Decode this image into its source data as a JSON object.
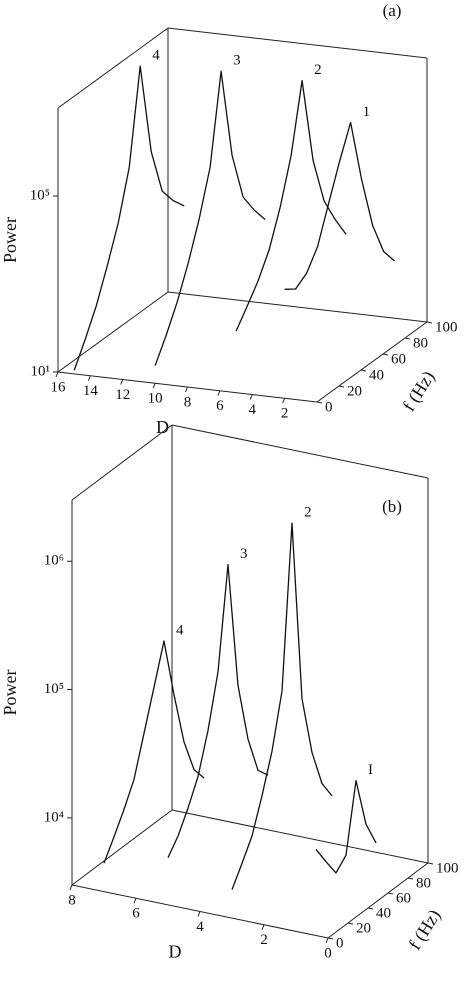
{
  "chart_data": [
    {
      "type": "waterfall3d",
      "panel_label": "(a)",
      "xlabel": "D",
      "ylabel": "f (Hz)",
      "zlabel": "Power",
      "xlim": [
        16,
        0
      ],
      "xticks": [
        16,
        14,
        12,
        10,
        8,
        6,
        4,
        2
      ],
      "ylim": [
        0,
        100
      ],
      "yticks": [
        0,
        20,
        40,
        60,
        80,
        100
      ],
      "zlim": [
        10,
        10000000
      ],
      "zticks": [
        {
          "value": 10,
          "label": "10¹"
        },
        {
          "value": 100000,
          "label": "10⁵"
        }
      ],
      "log_z": true,
      "f": [
        0,
        10,
        20,
        30,
        40,
        50,
        60,
        70,
        80,
        90,
        100
      ],
      "series": [
        {
          "name": "4",
          "D": 15,
          "color": "#111111",
          "values": [
            12,
            40,
            150,
            800,
            5000,
            60000,
            8000000,
            60000,
            5000,
            2000,
            1000
          ]
        },
        {
          "name": "3",
          "D": 10,
          "color": "#111111",
          "values": [
            25,
            80,
            300,
            1500,
            10000,
            100000,
            10000000,
            80000,
            6000,
            2000,
            800
          ]
        },
        {
          "name": "2",
          "D": 5,
          "color": "#111111",
          "values": [
            250,
            600,
            1500,
            5000,
            30000,
            300000,
            10000000,
            100000,
            8000,
            2000,
            600
          ]
        },
        {
          "name": "1",
          "D": 2,
          "color": "#111111",
          "values": [
            3000,
            2000,
            3000,
            8000,
            50000,
            300000,
            1500000,
            50000,
            3000,
            500,
            200
          ]
        }
      ]
    },
    {
      "type": "waterfall3d",
      "panel_label": "(b)",
      "xlabel": "D",
      "ylabel": "f (Hz)",
      "zlabel": "Power",
      "xlim": [
        8,
        0
      ],
      "xticks": [
        8,
        6,
        4,
        2,
        0
      ],
      "ylim": [
        0,
        100
      ],
      "yticks": [
        0,
        20,
        40,
        60,
        80,
        100
      ],
      "zlim": [
        3000,
        3000000
      ],
      "zticks": [
        {
          "value": 10000,
          "label": "10⁴"
        },
        {
          "value": 100000,
          "label": "10⁵"
        },
        {
          "value": 1000000,
          "label": "10⁶"
        }
      ],
      "log_z": true,
      "f": [
        0,
        10,
        20,
        30,
        40,
        50,
        60,
        70,
        80,
        90,
        100
      ],
      "series": [
        {
          "name": "4",
          "D": 7,
          "color": "#111111",
          "values": [
            5000,
            7000,
            10000,
            15000,
            30000,
            60000,
            120000,
            40000,
            15000,
            8000,
            6000
          ]
        },
        {
          "name": "3",
          "D": 5,
          "color": "#111111",
          "values": [
            7000,
            9000,
            13000,
            20000,
            40000,
            100000,
            600000,
            60000,
            20000,
            10000,
            8000
          ]
        },
        {
          "name": "2",
          "D": 3,
          "color": "#111111",
          "values": [
            5000,
            7000,
            10000,
            18000,
            35000,
            90000,
            1600000,
            60000,
            20000,
            10000,
            7000
          ]
        },
        {
          "name": "I",
          "D": 1,
          "color": "#111111",
          "values": [
            null,
            null,
            10000,
            7000,
            5000,
            6000,
            20000,
            8000,
            5000,
            null,
            null
          ]
        }
      ]
    }
  ]
}
